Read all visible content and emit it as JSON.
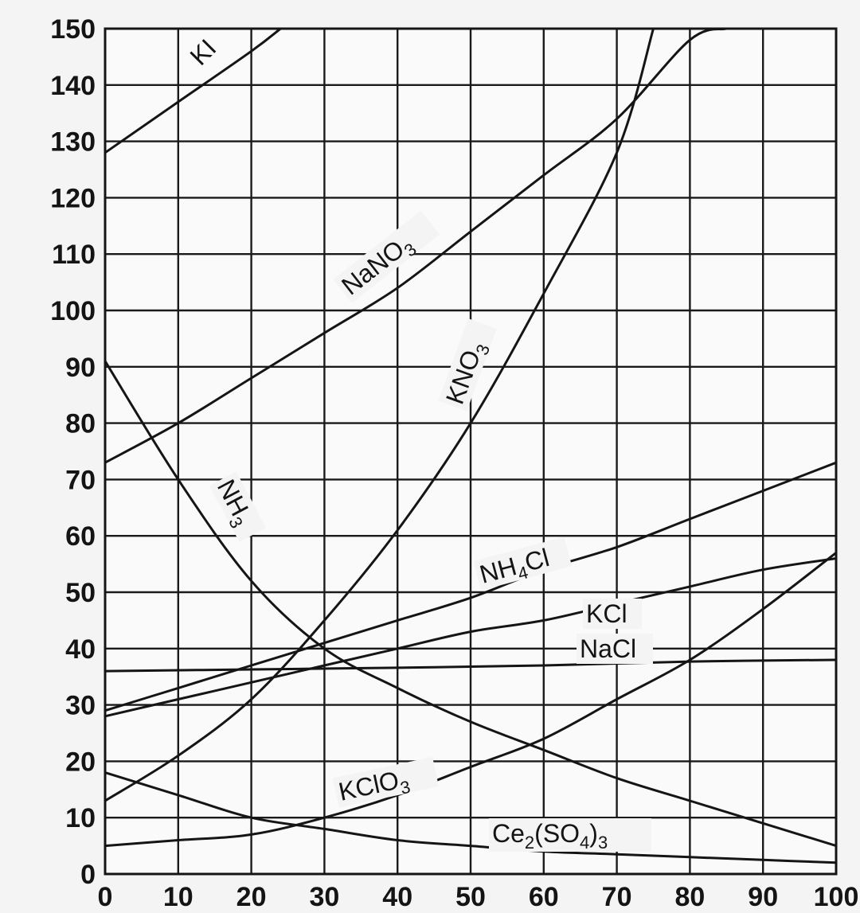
{
  "chart_data": {
    "type": "line",
    "title": "",
    "xlabel": "",
    "ylabel": "",
    "xlim": [
      0,
      100
    ],
    "ylim": [
      0,
      150
    ],
    "x_ticks": [
      0,
      10,
      20,
      30,
      40,
      50,
      60,
      70,
      80,
      90,
      100
    ],
    "y_ticks": [
      0,
      10,
      20,
      30,
      40,
      50,
      60,
      70,
      80,
      90,
      100,
      110,
      120,
      130,
      140,
      150
    ],
    "grid": true,
    "legend": "none",
    "series": [
      {
        "name": "KI",
        "x": [
          0,
          10,
          20,
          24
        ],
        "y": [
          128,
          137,
          146,
          150
        ]
      },
      {
        "name": "NaNO3",
        "x": [
          0,
          10,
          20,
          30,
          40,
          50,
          60,
          70,
          80,
          85
        ],
        "y": [
          73,
          80,
          88,
          96,
          104,
          114,
          124,
          134,
          148,
          150
        ]
      },
      {
        "name": "KNO3",
        "x": [
          0,
          10,
          20,
          30,
          40,
          50,
          60,
          70,
          75
        ],
        "y": [
          13,
          21,
          31,
          45,
          61,
          80,
          103,
          128,
          150
        ]
      },
      {
        "name": "NH3",
        "x": [
          0,
          10,
          20,
          30,
          40,
          50,
          60,
          70,
          80,
          90,
          100
        ],
        "y": [
          91,
          70,
          52,
          40,
          33,
          27,
          22,
          17,
          13,
          9,
          5
        ]
      },
      {
        "name": "NH4Cl",
        "x": [
          0,
          10,
          20,
          30,
          40,
          50,
          60,
          70,
          80,
          90,
          100
        ],
        "y": [
          29,
          33,
          37,
          41,
          45,
          49,
          54,
          58,
          63,
          68,
          73
        ]
      },
      {
        "name": "KCl",
        "x": [
          0,
          10,
          20,
          30,
          40,
          50,
          60,
          70,
          80,
          90,
          100
        ],
        "y": [
          28,
          31,
          34,
          37,
          40,
          43,
          45,
          48,
          51,
          54,
          56
        ]
      },
      {
        "name": "NaCl",
        "x": [
          0,
          20,
          40,
          60,
          80,
          100
        ],
        "y": [
          36,
          36.3,
          36.6,
          37,
          37.7,
          38
        ]
      },
      {
        "name": "KClO3",
        "x": [
          0,
          10,
          20,
          30,
          40,
          50,
          60,
          70,
          80,
          90,
          100
        ],
        "y": [
          5,
          6,
          7,
          10,
          14,
          19,
          24,
          31,
          38,
          47,
          57
        ]
      },
      {
        "name": "Ce2(SO4)3",
        "x": [
          0,
          10,
          20,
          30,
          40,
          50,
          60,
          70,
          80,
          90,
          100
        ],
        "y": [
          18,
          14,
          10,
          8,
          6,
          5,
          4,
          3.5,
          3,
          2.5,
          2
        ]
      }
    ]
  },
  "labels": {
    "KI": "KI",
    "NaNO3_main": "NaNO",
    "NaNO3_sub": "3",
    "KNO3_main": "KNO",
    "KNO3_sub": "3",
    "NH3_main": "NH",
    "NH3_sub": "3",
    "NH4Cl_a": "NH",
    "NH4Cl_sub": "4",
    "NH4Cl_b": "Cl",
    "KCl": "KCl",
    "NaCl": "NaCl",
    "KClO3_main": "KClO",
    "KClO3_sub": "3",
    "Ce_a": "Ce",
    "Ce_sub1": "2",
    "Ce_b": "(SO",
    "Ce_sub2": "4",
    "Ce_c": ")",
    "Ce_sub3": "3"
  }
}
